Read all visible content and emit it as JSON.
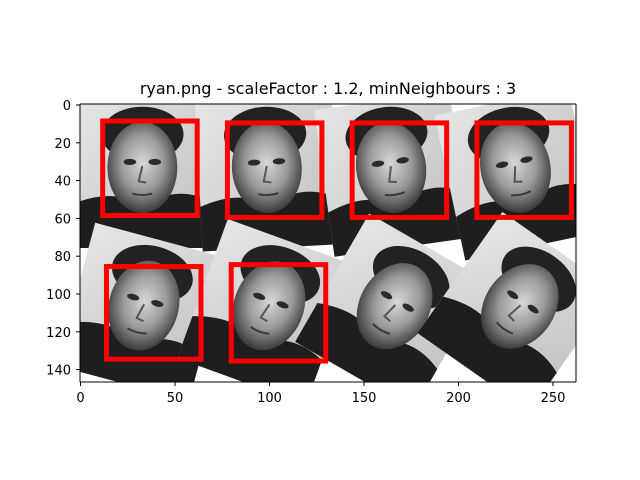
{
  "figure": {
    "title": "ryan.png - scaleFactor : 1.2, minNeighbours : 3"
  },
  "axes": {
    "x_ticks": [
      "0",
      "50",
      "100",
      "150",
      "200",
      "250"
    ],
    "y_ticks": [
      "0",
      "20",
      "40",
      "60",
      "80",
      "100",
      "120",
      "140"
    ]
  },
  "image": {
    "grid_rows": 2,
    "grid_cols": 4,
    "tiles": [
      {
        "row": 0,
        "col": 0,
        "rotation_deg": 0,
        "face_detected": true
      },
      {
        "row": 0,
        "col": 1,
        "rotation_deg": -3,
        "face_detected": true
      },
      {
        "row": 0,
        "col": 2,
        "rotation_deg": -8,
        "face_detected": true
      },
      {
        "row": 0,
        "col": 3,
        "rotation_deg": -12,
        "face_detected": true
      },
      {
        "row": 1,
        "col": 0,
        "rotation_deg": 15,
        "face_detected": true
      },
      {
        "row": 1,
        "col": 1,
        "rotation_deg": 20,
        "face_detected": true
      },
      {
        "row": 1,
        "col": 2,
        "rotation_deg": 30,
        "face_detected": false
      },
      {
        "row": 1,
        "col": 3,
        "rotation_deg": 35,
        "face_detected": false
      }
    ],
    "detection_box_color": "#ff0000",
    "detections": [
      {
        "x1": 12,
        "y1": 9,
        "x2": 62,
        "y2": 59
      },
      {
        "x1": 78,
        "y1": 10,
        "x2": 128,
        "y2": 60
      },
      {
        "x1": 144,
        "y1": 10,
        "x2": 194,
        "y2": 60
      },
      {
        "x1": 210,
        "y1": 10,
        "x2": 260,
        "y2": 60
      },
      {
        "x1": 14,
        "y1": 86,
        "x2": 64,
        "y2": 135
      },
      {
        "x1": 80,
        "y1": 85,
        "x2": 130,
        "y2": 136
      }
    ]
  }
}
